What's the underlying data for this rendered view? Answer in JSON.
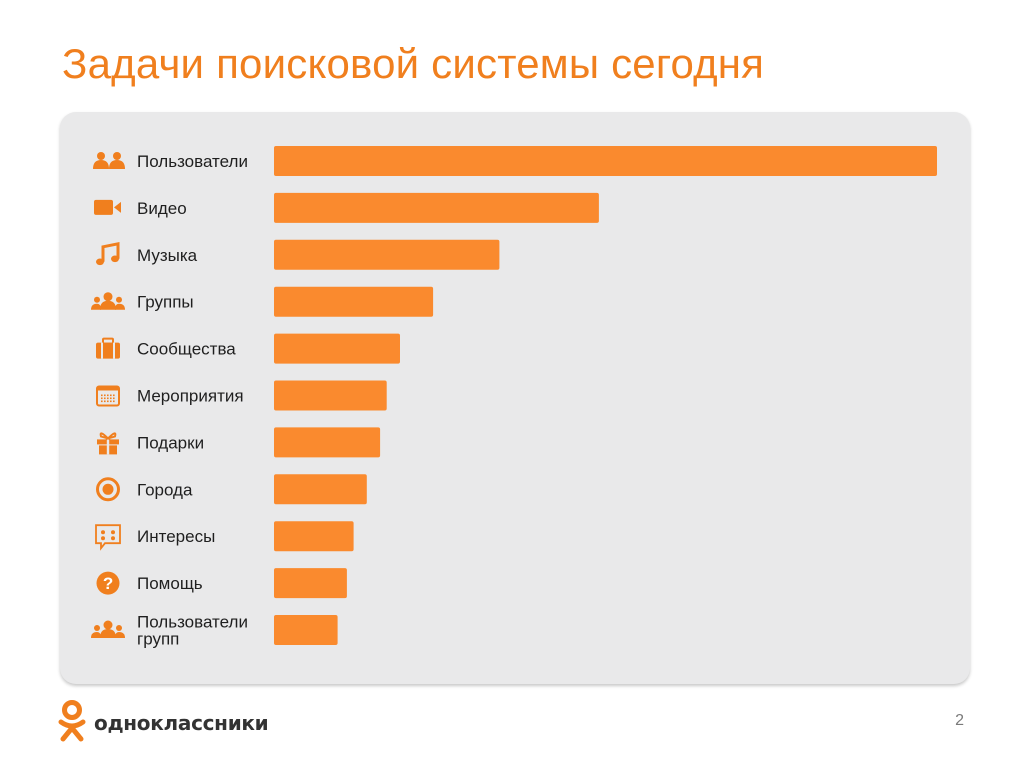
{
  "title": "Задачи поисковой системы сегодня",
  "colors": {
    "accent": "#f07f1e",
    "bar": "#fa8a2e",
    "panel": "#e9e9ea",
    "text": "#1f1f1f"
  },
  "chart_data": {
    "type": "bar",
    "orientation": "horizontal",
    "categories": [
      [
        "Пользователи"
      ],
      [
        "Видео"
      ],
      [
        "Музыка"
      ],
      [
        "Группы"
      ],
      [
        "Сообщества"
      ],
      [
        "Мероприятия"
      ],
      [
        "Подарки"
      ],
      [
        "Города"
      ],
      [
        "Интересы"
      ],
      [
        "Помощь"
      ],
      [
        "Пользователи",
        "групп"
      ]
    ],
    "icons": [
      "users-icon",
      "video-camera-icon",
      "music-note-icon",
      "group-icon",
      "briefcase-icon",
      "calendar-icon",
      "gift-icon",
      "target-icon",
      "interests-icon",
      "help-icon",
      "group-users-icon"
    ],
    "values": [
      100,
      49,
      34,
      24,
      19,
      17,
      16,
      14,
      12,
      11,
      9.6
    ],
    "xlim": [
      0,
      100
    ],
    "grid": false,
    "legend": "none",
    "xlabel": "",
    "ylabel": ""
  },
  "footer": {
    "brand": "одноклассники",
    "page_number": "2"
  }
}
